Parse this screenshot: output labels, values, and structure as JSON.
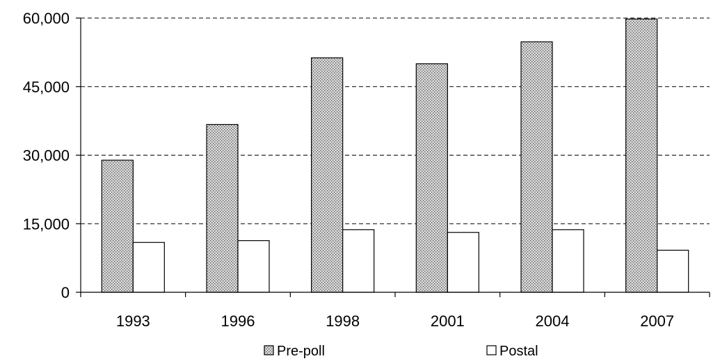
{
  "chart_data": {
    "type": "bar",
    "title": "",
    "xlabel": "",
    "ylabel": "",
    "categories": [
      "1993",
      "1996",
      "1998",
      "2001",
      "2004",
      "2007"
    ],
    "series": [
      {
        "name": "Pre-poll",
        "values": [
          28900,
          36700,
          51300,
          50000,
          54800,
          59800
        ],
        "fill": "dotted"
      },
      {
        "name": "Postal",
        "values": [
          10900,
          11300,
          13700,
          13100,
          13700,
          9200
        ],
        "fill": "#ffffff"
      }
    ],
    "ylim": [
      0,
      60000
    ],
    "yticks": [
      {
        "value": 0,
        "label": "0"
      },
      {
        "value": 15000,
        "label": "15,000"
      },
      {
        "value": 30000,
        "label": "30,000"
      },
      {
        "value": 45000,
        "label": "45,000"
      },
      {
        "value": 60000,
        "label": "60,000"
      }
    ],
    "grid": "horizontal-dashed",
    "legend_position": "bottom"
  }
}
